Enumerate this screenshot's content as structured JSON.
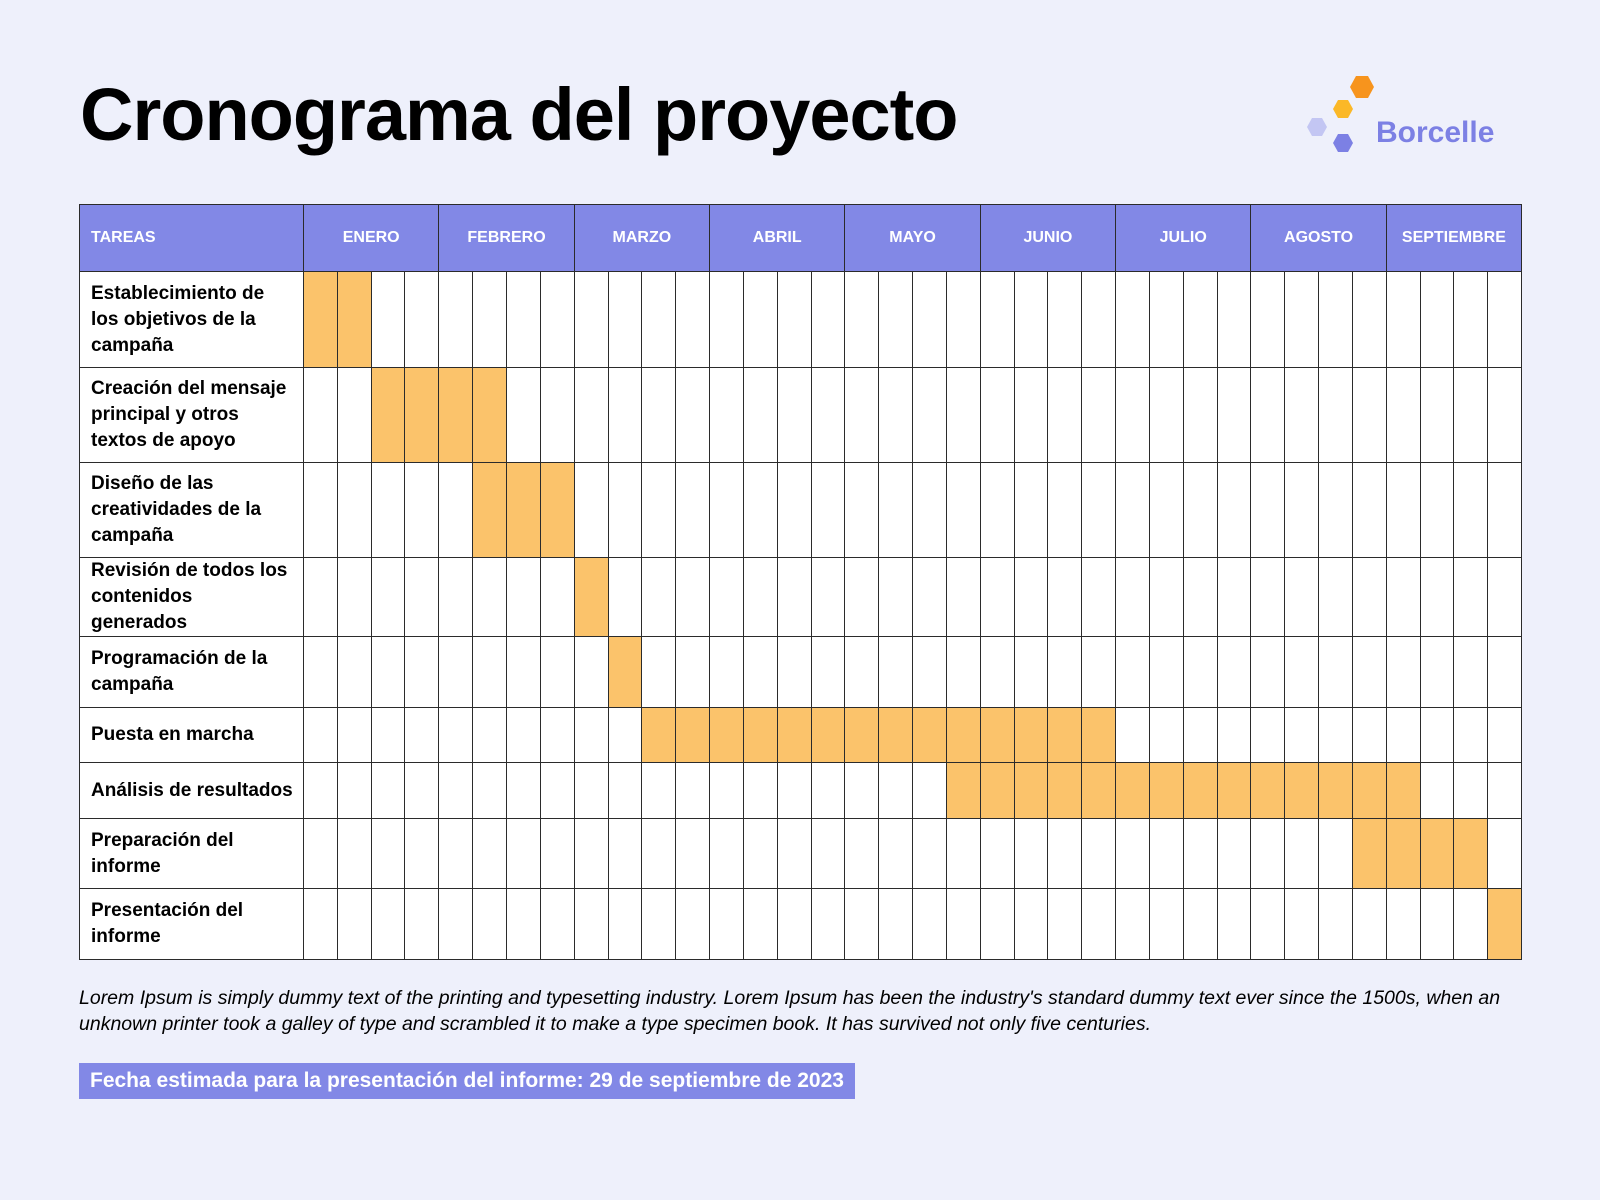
{
  "title": "Cronograma del proyecto",
  "brand": {
    "name": "Borcelle"
  },
  "colors": {
    "header": "#8288e6",
    "bar": "#fbc36b",
    "background": "#eef0fb",
    "logo_orange": "#f7941d",
    "logo_yellow": "#fbb827",
    "logo_light": "#c3c6f3",
    "logo_purple": "#7c80e4"
  },
  "table": {
    "task_header": "TAREAS",
    "months": [
      "ENERO",
      "FEBRERO",
      "MARZO",
      "ABRIL",
      "MAYO",
      "JUNIO",
      "JULIO",
      "AGOSTO",
      "SEPTIEMBRE"
    ],
    "weeks_per_month": 4,
    "tasks": [
      {
        "name": "Establecimiento de los objetivos de la campaña",
        "start_week": 1,
        "end_week": 2
      },
      {
        "name": "Creación del mensaje principal y otros textos de apoyo",
        "start_week": 3,
        "end_week": 6
      },
      {
        "name": "Diseño de las creatividades de la campaña",
        "start_week": 6,
        "end_week": 8
      },
      {
        "name": "Revisión de todos los contenidos generados",
        "start_week": 9,
        "end_week": 9
      },
      {
        "name": "Programación de la campaña",
        "start_week": 10,
        "end_week": 10
      },
      {
        "name": "Puesta en marcha",
        "start_week": 11,
        "end_week": 24
      },
      {
        "name": "Análisis de resultados",
        "start_week": 20,
        "end_week": 33
      },
      {
        "name": "Preparación del informe",
        "start_week": 32,
        "end_week": 35
      },
      {
        "name": "Presentación del informe",
        "start_week": 36,
        "end_week": 36
      }
    ]
  },
  "note": "Lorem Ipsum is simply dummy text of the printing and typesetting industry. Lorem Ipsum has been the industry's standard dummy text ever since the 1500s, when an unknown printer took a galley of type and scrambled it to make a type specimen book. It has survived not only five centuries.",
  "deadline": "Fecha estimada para la presentación del informe: 29 de septiembre de 2023"
}
